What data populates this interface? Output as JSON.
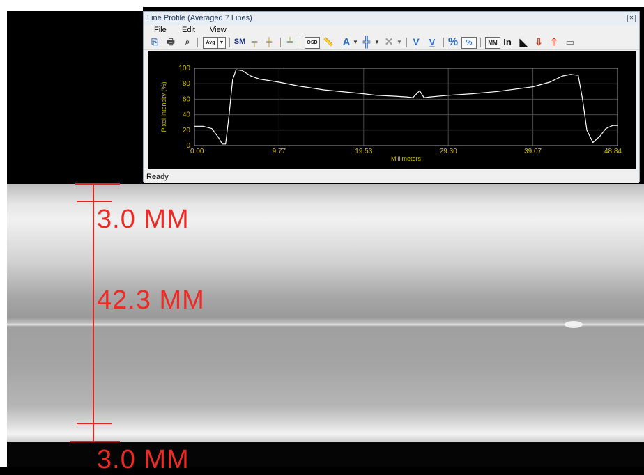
{
  "window": {
    "title": "Line Profile (Averaged 7 Lines)",
    "close_icon": "close-icon",
    "menu": [
      "File",
      "Edit",
      "View"
    ],
    "toolbar": {
      "avg": "Avg",
      "sm": "SM",
      "osd": "OSD",
      "text_a": "A",
      "v": "V",
      "percent": "%",
      "mm": "MM",
      "in": "In"
    },
    "status": "Ready"
  },
  "measurements": {
    "top_label": "3.0 MM",
    "middle_label": "42.3 MM",
    "bottom_label": "3.0 MM",
    "color": "#e52320"
  },
  "chart_data": {
    "type": "line",
    "title": "",
    "xlabel": "Millimeters",
    "ylabel": "Pixel Intensity (%)",
    "xlim": [
      0,
      48.84
    ],
    "ylim": [
      0,
      100
    ],
    "x_ticks": [
      "0.00",
      "9.77",
      "19.53",
      "29.30",
      "39.07",
      "48.84"
    ],
    "y_ticks": [
      "0",
      "20",
      "40",
      "60",
      "80",
      "100"
    ],
    "grid": true,
    "line_color": "#ffffff",
    "text_color": "#d4c000",
    "series": [
      {
        "x": [
          0,
          1,
          2,
          2.8,
          3.2,
          3.6,
          4.0,
          4.4,
          4.8,
          5.5,
          6.5,
          7.5,
          9.77,
          12,
          15,
          19.53,
          21,
          23,
          24.5,
          25.2,
          26.0,
          26.5,
          27.2,
          29.3,
          32,
          35,
          39.07,
          41,
          42.5,
          43.4,
          44.3,
          44.8,
          45.3,
          46.0,
          46.8,
          47.5,
          48.3,
          48.84
        ],
        "y": [
          25,
          25,
          22,
          10,
          2,
          2,
          40,
          85,
          98,
          97,
          90,
          86,
          82,
          77,
          72,
          67,
          65,
          64,
          63,
          62,
          71,
          62,
          63,
          65,
          67,
          70,
          76,
          82,
          90,
          92,
          91,
          60,
          20,
          4,
          12,
          22,
          26,
          26
        ]
      }
    ]
  }
}
